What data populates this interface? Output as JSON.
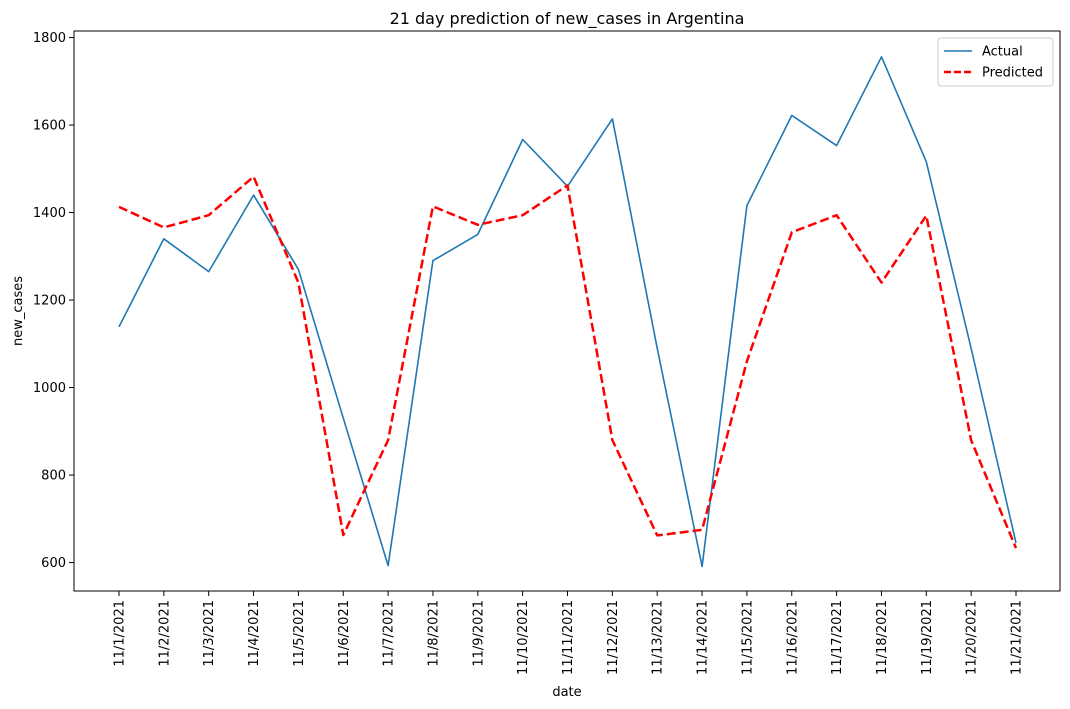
{
  "chart_data": {
    "type": "line",
    "title": "21 day prediction of new_cases in Argentina",
    "xlabel": "date",
    "ylabel": "new_cases",
    "categories": [
      "11/1/2021",
      "11/2/2021",
      "11/3/2021",
      "11/4/2021",
      "11/5/2021",
      "11/6/2021",
      "11/7/2021",
      "11/8/2021",
      "11/9/2021",
      "11/10/2021",
      "11/11/2021",
      "11/12/2021",
      "11/13/2021",
      "11/14/2021",
      "11/15/2021",
      "11/16/2021",
      "11/17/2021",
      "11/18/2021",
      "11/19/2021",
      "11/20/2021",
      "11/21/2021"
    ],
    "yticks": [
      600,
      800,
      1000,
      1200,
      1400,
      1600,
      1800
    ],
    "ylim": [
      535,
      1815
    ],
    "grid": false,
    "legend_position": "top-right",
    "series": [
      {
        "name": "Actual",
        "color": "#1f77b4",
        "style": "solid",
        "values": [
          1139,
          1340,
          1265,
          1440,
          1270,
          930,
          593,
          1290,
          1350,
          1567,
          1460,
          1614,
          1090,
          591,
          1416,
          1622,
          1553,
          1756,
          1516,
          1090,
          645
        ]
      },
      {
        "name": "Predicted",
        "color": "#ff0000",
        "style": "dashed",
        "values": [
          1413,
          1366,
          1394,
          1482,
          1240,
          663,
          880,
          1414,
          1372,
          1394,
          1462,
          880,
          662,
          675,
          1060,
          1355,
          1394,
          1240,
          1393,
          880,
          633
        ]
      }
    ]
  }
}
